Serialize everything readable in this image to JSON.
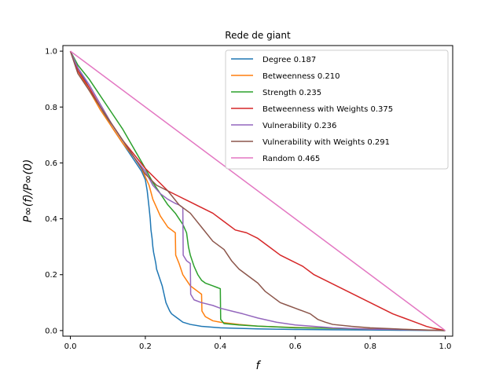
{
  "chart_data": {
    "type": "line",
    "title": "Rede de giant",
    "xlabel": "f",
    "ylabel": "P∞(f)/P∞(0)",
    "xlim": [
      -0.02,
      1.02
    ],
    "ylim": [
      -0.02,
      1.02
    ],
    "xticks": [
      "0.0",
      "0.2",
      "0.4",
      "0.6",
      "0.8",
      "1.0"
    ],
    "yticks": [
      "0.0",
      "0.2",
      "0.4",
      "0.6",
      "0.8",
      "1.0"
    ],
    "grid": false,
    "legend_position": "top-right",
    "series": [
      {
        "name": "Degree 0.187",
        "color": "#1f77b4",
        "x": [
          0.0,
          0.02,
          0.05,
          0.08,
          0.11,
          0.14,
          0.17,
          0.19,
          0.2,
          0.205,
          0.21,
          0.213,
          0.215,
          0.218,
          0.22,
          0.222,
          0.225,
          0.228,
          0.23,
          0.235,
          0.24,
          0.245,
          0.25,
          0.255,
          0.26,
          0.265,
          0.27,
          0.28,
          0.29,
          0.3,
          0.32,
          0.35,
          0.4,
          0.5,
          0.6,
          0.7,
          0.8,
          0.9,
          1.0
        ],
        "y": [
          1.0,
          0.94,
          0.87,
          0.8,
          0.73,
          0.67,
          0.61,
          0.57,
          0.54,
          0.5,
          0.44,
          0.4,
          0.36,
          0.33,
          0.3,
          0.28,
          0.26,
          0.24,
          0.22,
          0.2,
          0.18,
          0.16,
          0.13,
          0.1,
          0.085,
          0.07,
          0.06,
          0.05,
          0.04,
          0.03,
          0.022,
          0.015,
          0.01,
          0.006,
          0.004,
          0.003,
          0.002,
          0.001,
          0.0
        ]
      },
      {
        "name": "Betweenness 0.210",
        "color": "#ff7f0e",
        "x": [
          0.0,
          0.02,
          0.05,
          0.08,
          0.11,
          0.14,
          0.17,
          0.19,
          0.21,
          0.22,
          0.23,
          0.24,
          0.25,
          0.26,
          0.27,
          0.28,
          0.281,
          0.29,
          0.3,
          0.31,
          0.32,
          0.33,
          0.34,
          0.35,
          0.351,
          0.36,
          0.38,
          0.4,
          0.45,
          0.5,
          0.6,
          0.7,
          0.8,
          0.9,
          1.0
        ],
        "y": [
          1.0,
          0.93,
          0.86,
          0.79,
          0.73,
          0.67,
          0.62,
          0.58,
          0.52,
          0.47,
          0.44,
          0.41,
          0.39,
          0.37,
          0.36,
          0.35,
          0.27,
          0.24,
          0.2,
          0.18,
          0.16,
          0.15,
          0.14,
          0.13,
          0.07,
          0.05,
          0.035,
          0.03,
          0.022,
          0.016,
          0.011,
          0.008,
          0.006,
          0.004,
          0.0
        ]
      },
      {
        "name": "Strength 0.235",
        "color": "#2ca02c",
        "x": [
          0.0,
          0.02,
          0.05,
          0.08,
          0.11,
          0.14,
          0.17,
          0.2,
          0.22,
          0.24,
          0.26,
          0.28,
          0.3,
          0.31,
          0.315,
          0.32,
          0.33,
          0.34,
          0.35,
          0.36,
          0.37,
          0.38,
          0.39,
          0.4,
          0.401,
          0.41,
          0.45,
          0.5,
          0.55,
          0.6,
          0.7,
          0.8,
          0.9,
          1.0
        ],
        "y": [
          1.0,
          0.95,
          0.9,
          0.84,
          0.78,
          0.72,
          0.65,
          0.58,
          0.53,
          0.49,
          0.45,
          0.42,
          0.38,
          0.35,
          0.3,
          0.27,
          0.23,
          0.2,
          0.18,
          0.17,
          0.165,
          0.16,
          0.155,
          0.15,
          0.04,
          0.025,
          0.02,
          0.016,
          0.013,
          0.01,
          0.008,
          0.005,
          0.003,
          0.0
        ]
      },
      {
        "name": "Betweenness with Weights 0.375",
        "color": "#d62728",
        "x": [
          0.0,
          0.02,
          0.05,
          0.08,
          0.11,
          0.14,
          0.17,
          0.2,
          0.23,
          0.26,
          0.29,
          0.32,
          0.35,
          0.38,
          0.41,
          0.44,
          0.47,
          0.5,
          0.53,
          0.56,
          0.59,
          0.62,
          0.65,
          0.68,
          0.71,
          0.74,
          0.77,
          0.8,
          0.83,
          0.86,
          0.89,
          0.92,
          0.95,
          0.97,
          1.0
        ],
        "y": [
          1.0,
          0.93,
          0.87,
          0.8,
          0.74,
          0.68,
          0.63,
          0.58,
          0.54,
          0.5,
          0.48,
          0.46,
          0.44,
          0.42,
          0.39,
          0.36,
          0.35,
          0.33,
          0.3,
          0.27,
          0.25,
          0.23,
          0.2,
          0.18,
          0.16,
          0.14,
          0.12,
          0.1,
          0.08,
          0.06,
          0.045,
          0.03,
          0.015,
          0.008,
          0.0
        ]
      },
      {
        "name": "Vulnerability 0.236",
        "color": "#9467bd",
        "x": [
          0.0,
          0.02,
          0.05,
          0.08,
          0.11,
          0.14,
          0.17,
          0.2,
          0.22,
          0.24,
          0.26,
          0.28,
          0.29,
          0.3,
          0.301,
          0.31,
          0.32,
          0.321,
          0.33,
          0.35,
          0.38,
          0.4,
          0.43,
          0.46,
          0.5,
          0.55,
          0.6,
          0.7,
          0.8,
          0.9,
          1.0
        ],
        "y": [
          1.0,
          0.94,
          0.88,
          0.81,
          0.74,
          0.68,
          0.62,
          0.57,
          0.52,
          0.49,
          0.47,
          0.455,
          0.45,
          0.44,
          0.27,
          0.25,
          0.24,
          0.13,
          0.11,
          0.1,
          0.09,
          0.08,
          0.07,
          0.06,
          0.045,
          0.03,
          0.02,
          0.01,
          0.005,
          0.003,
          0.0
        ]
      },
      {
        "name": "Vulnerability with Weights 0.291",
        "color": "#8c564b",
        "x": [
          0.0,
          0.02,
          0.05,
          0.08,
          0.11,
          0.14,
          0.17,
          0.2,
          0.23,
          0.26,
          0.29,
          0.32,
          0.35,
          0.38,
          0.41,
          0.42,
          0.43,
          0.45,
          0.47,
          0.5,
          0.52,
          0.54,
          0.56,
          0.58,
          0.6,
          0.62,
          0.64,
          0.66,
          0.68,
          0.7,
          0.75,
          0.8,
          0.85,
          0.9,
          1.0
        ],
        "y": [
          1.0,
          0.92,
          0.86,
          0.8,
          0.74,
          0.68,
          0.62,
          0.56,
          0.52,
          0.5,
          0.45,
          0.42,
          0.37,
          0.32,
          0.29,
          0.27,
          0.25,
          0.22,
          0.2,
          0.17,
          0.14,
          0.12,
          0.1,
          0.09,
          0.08,
          0.07,
          0.06,
          0.04,
          0.03,
          0.022,
          0.015,
          0.01,
          0.007,
          0.004,
          0.0
        ]
      },
      {
        "name": "Random 0.465",
        "color": "#e377c2",
        "x": [
          0.0,
          1.0
        ],
        "y": [
          1.0,
          0.0
        ]
      }
    ]
  }
}
